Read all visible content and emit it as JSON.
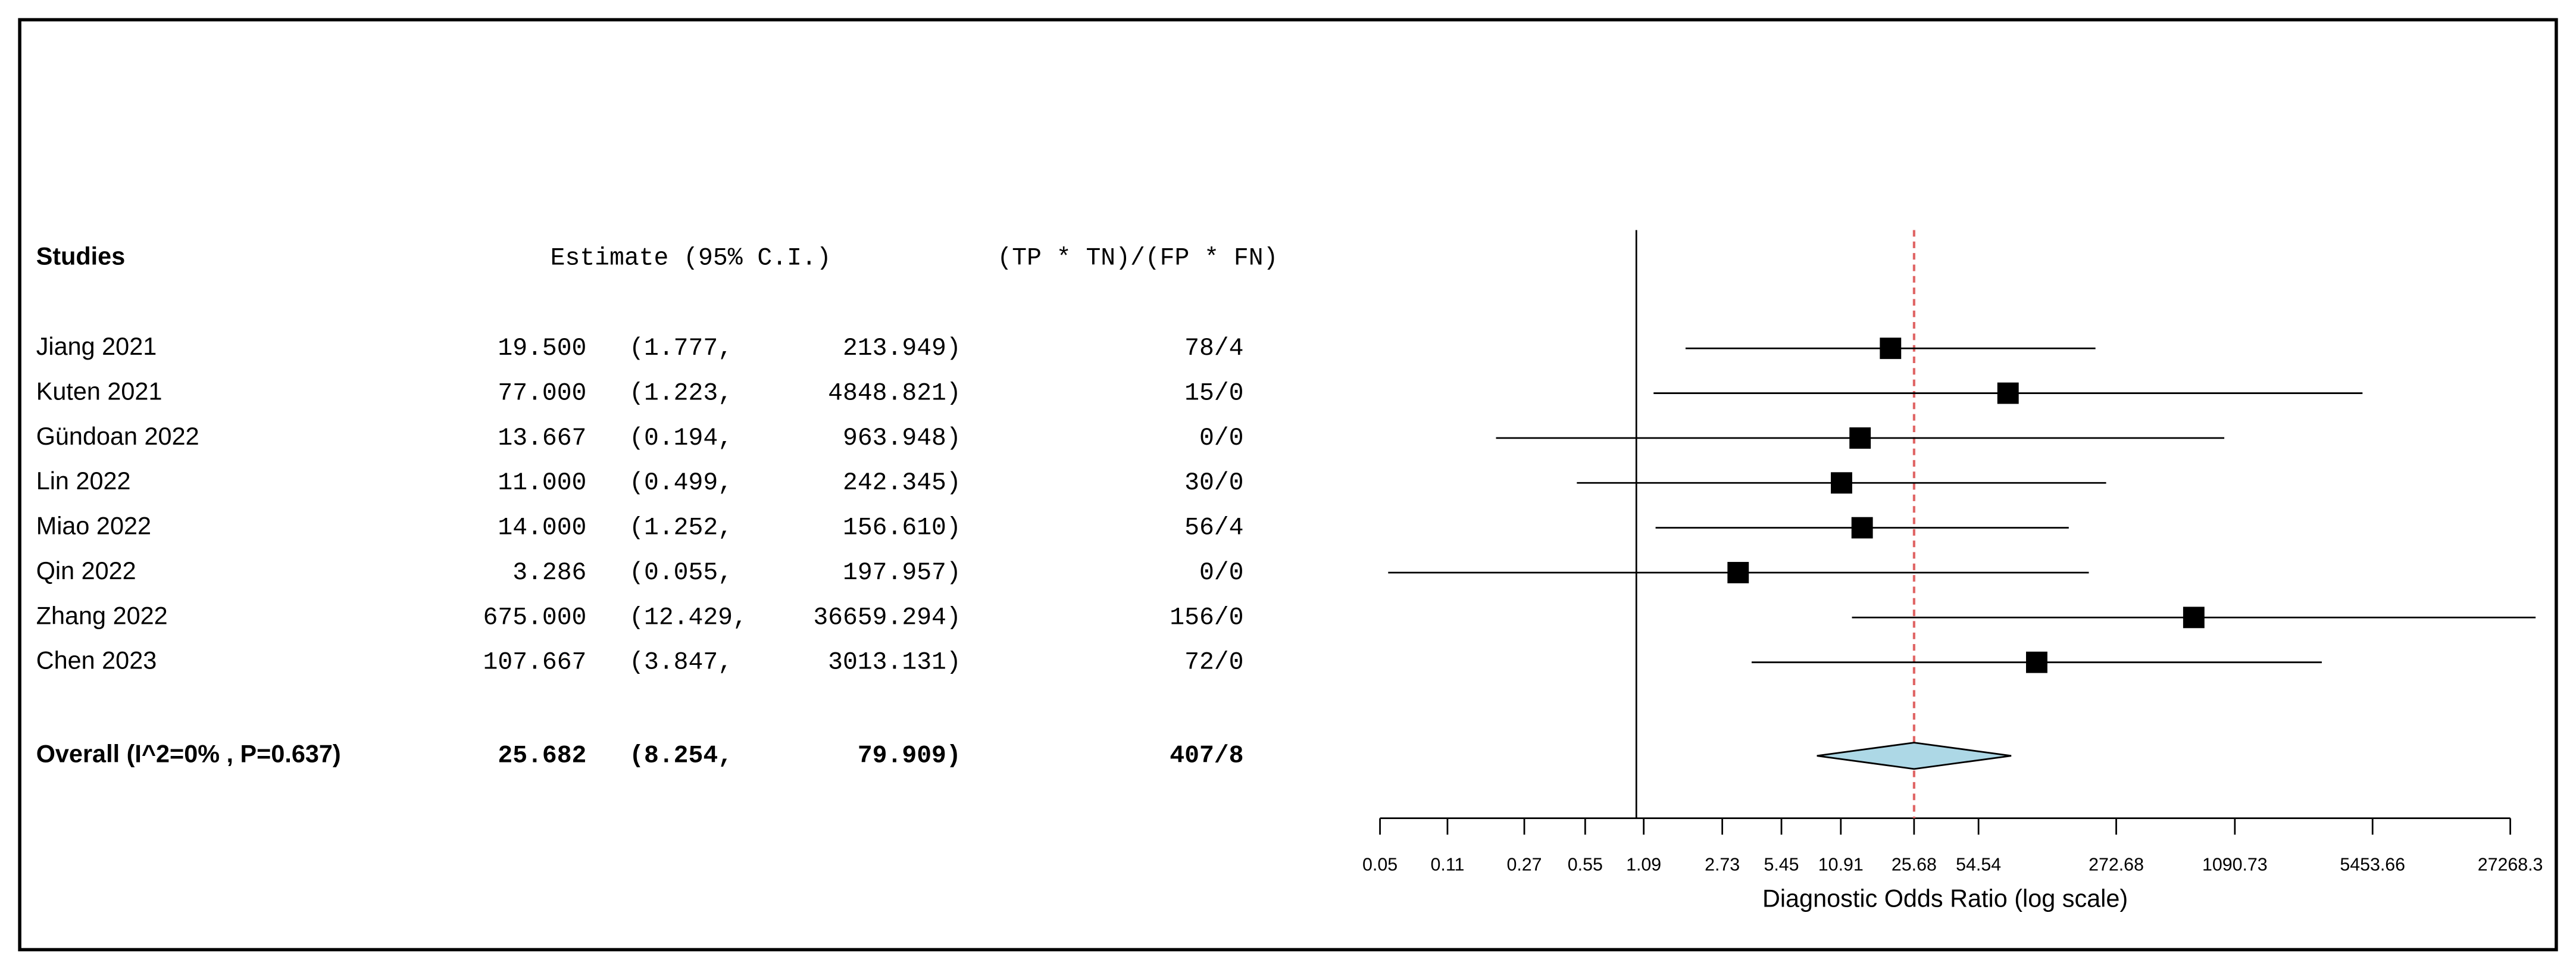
{
  "chart_data": {
    "type": "forest",
    "headers": {
      "study": "Studies",
      "estimate": "Estimate (95% C.I.)",
      "ratio": "(TP * TN)/(FP * FN)"
    },
    "categories": [
      "Jiang 2021",
      "Kuten 2021",
      "Gündoan 2022",
      "Lin 2022",
      "Miao 2022",
      "Qin 2022",
      "Zhang 2022",
      "Chen 2023"
    ],
    "values": [
      19.5,
      77,
      13.667,
      11,
      14,
      3.286,
      675,
      107.667
    ],
    "value_labels": [
      "19.500",
      "77.000",
      "13.667",
      "11.000",
      "14.000",
      "3.286",
      "675.000",
      "107.667"
    ],
    "lower": [
      1.777,
      1.223,
      0.194,
      0.499,
      1.252,
      0.055,
      12.429,
      3.847
    ],
    "lower_labels": [
      "(1.777,",
      "(1.223,",
      "(0.194,",
      "(0.499,",
      "(1.252,",
      "(0.055,",
      "(12.429,",
      "(3.847,"
    ],
    "upper": [
      213.949,
      4848.821,
      963.948,
      242.345,
      156.61,
      197.957,
      36659.294,
      3013.131
    ],
    "upper_labels": [
      "213.949)",
      "4848.821)",
      "963.948)",
      "242.345)",
      "156.610)",
      "197.957)",
      "36659.294)",
      "3013.131)"
    ],
    "ratios": [
      "78/4",
      "15/0",
      "0/0",
      "30/0",
      "56/4",
      "0/0",
      "156/0",
      "72/0"
    ],
    "overall": {
      "name": "Overall (I^2=0% , P=0.637)",
      "value": 25.682,
      "value_label": "25.682",
      "lower": 8.254,
      "lower_label": "(8.254,",
      "upper": 79.909,
      "upper_label": "79.909)",
      "ratio": "407/8"
    },
    "xlabel": "Diagnostic Odds Ratio (log scale)",
    "log_scale": true,
    "xlim": [
      0.05,
      27268.3
    ],
    "xticks": [
      0.05,
      0.11,
      0.27,
      0.55,
      1.09,
      2.73,
      5.45,
      10.91,
      25.68,
      54.54,
      272.68,
      1090.73,
      5453.66,
      27268.3
    ],
    "null_line": 1,
    "marker_color": "#000000",
    "diamond_color": "#add8e6",
    "reference_color": "#e06666"
  }
}
